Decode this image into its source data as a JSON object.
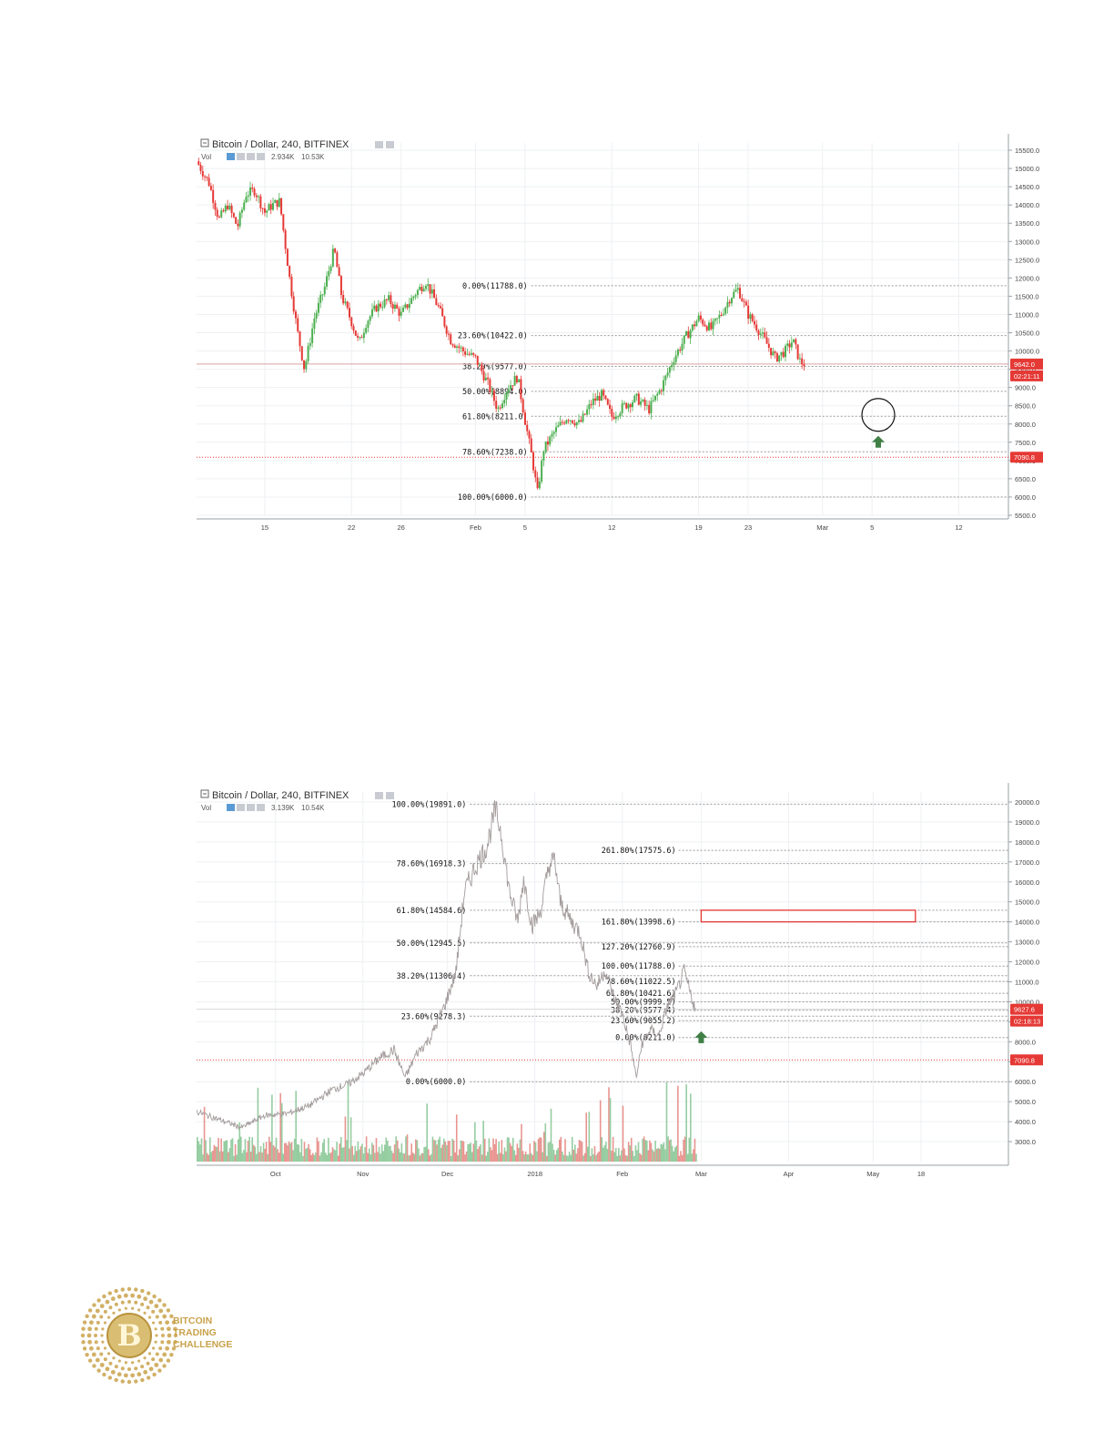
{
  "colors": {
    "up": "#4caf50",
    "down": "#e53935",
    "accent": "#e53935",
    "grid": "#eef0f3",
    "gold": "#c9a24b",
    "arrow": "#3f7f45"
  },
  "chart_data": [
    {
      "type": "candlestick",
      "title": "Bitcoin / Dollar, 240, BITFINEX",
      "vol_label": "Vol",
      "vol_values": [
        "2.934K",
        "10.53K"
      ],
      "y_ticks": [
        "15500.0",
        "15000.0",
        "14500.0",
        "14000.0",
        "13500.0",
        "13000.0",
        "12500.0",
        "12000.0",
        "11500.0",
        "11000.0",
        "10500.0",
        "10000.0",
        "9500.0",
        "9000.0",
        "8500.0",
        "8000.0",
        "7500.0",
        "7000.0",
        "6500.0",
        "6000.0",
        "5500.0"
      ],
      "ylim": [
        5500,
        15700
      ],
      "x_ticks": [
        "15",
        "22",
        "26",
        "Feb",
        "5",
        "12",
        "19",
        "23",
        "Mar",
        "5",
        "12"
      ],
      "x_tick_days": [
        15,
        22,
        26,
        32,
        36,
        43,
        50,
        54,
        60,
        64,
        71
      ],
      "xlim": [
        9.5,
        75
      ],
      "price_path": [
        {
          "d": 9.5,
          "p": 15200
        },
        {
          "d": 10.5,
          "p": 14600
        },
        {
          "d": 11.3,
          "p": 13600
        },
        {
          "d": 12,
          "p": 14000
        },
        {
          "d": 12.8,
          "p": 13400
        },
        {
          "d": 13.5,
          "p": 14300
        },
        {
          "d": 14.2,
          "p": 14400
        },
        {
          "d": 15,
          "p": 13800
        },
        {
          "d": 15.6,
          "p": 14000
        },
        {
          "d": 16.2,
          "p": 14100
        },
        {
          "d": 17,
          "p": 12000
        },
        {
          "d": 17.6,
          "p": 10600
        },
        {
          "d": 18.2,
          "p": 9500
        },
        {
          "d": 19,
          "p": 10900
        },
        {
          "d": 19.8,
          "p": 11700
        },
        {
          "d": 20.6,
          "p": 12800
        },
        {
          "d": 21.2,
          "p": 11500
        },
        {
          "d": 22,
          "p": 10800
        },
        {
          "d": 22.6,
          "p": 10200
        },
        {
          "d": 23.2,
          "p": 10800
        },
        {
          "d": 24,
          "p": 11200
        },
        {
          "d": 25,
          "p": 11400
        },
        {
          "d": 26,
          "p": 11000
        },
        {
          "d": 27.2,
          "p": 11600
        },
        {
          "d": 28,
          "p": 11900
        },
        {
          "d": 29,
          "p": 11200
        },
        {
          "d": 30,
          "p": 10300
        },
        {
          "d": 31,
          "p": 10000
        },
        {
          "d": 32,
          "p": 9800
        },
        {
          "d": 33,
          "p": 9100
        },
        {
          "d": 33.8,
          "p": 8400
        },
        {
          "d": 34.6,
          "p": 9000
        },
        {
          "d": 35.4,
          "p": 9300
        },
        {
          "d": 36,
          "p": 8100
        },
        {
          "d": 36.6,
          "p": 7000
        },
        {
          "d": 37,
          "p": 6100
        },
        {
          "d": 37.5,
          "p": 7300
        },
        {
          "d": 38.4,
          "p": 7800
        },
        {
          "d": 39.4,
          "p": 8200
        },
        {
          "d": 40.4,
          "p": 8000
        },
        {
          "d": 41.4,
          "p": 8600
        },
        {
          "d": 42.2,
          "p": 8800
        },
        {
          "d": 43,
          "p": 8200
        },
        {
          "d": 44,
          "p": 8500
        },
        {
          "d": 45,
          "p": 8700
        },
        {
          "d": 46,
          "p": 8400
        },
        {
          "d": 47,
          "p": 9000
        },
        {
          "d": 48,
          "p": 9800
        },
        {
          "d": 49,
          "p": 10400
        },
        {
          "d": 50,
          "p": 10900
        },
        {
          "d": 51,
          "p": 10600
        },
        {
          "d": 51.8,
          "p": 11000
        },
        {
          "d": 52.6,
          "p": 11500
        },
        {
          "d": 53.2,
          "p": 11700
        },
        {
          "d": 54,
          "p": 11000
        },
        {
          "d": 54.8,
          "p": 10600
        },
        {
          "d": 55.5,
          "p": 10200
        },
        {
          "d": 56.2,
          "p": 9800
        },
        {
          "d": 57,
          "p": 10000
        },
        {
          "d": 57.6,
          "p": 10300
        },
        {
          "d": 58.2,
          "p": 9700
        },
        {
          "d": 58.6,
          "p": 9642
        }
      ],
      "fib_levels": [
        {
          "label": "0.00%(11788.0)",
          "value": 11788
        },
        {
          "label": "23.60%(10422.0)",
          "value": 10422
        },
        {
          "label": "38.20%(9577.0)",
          "value": 9577
        },
        {
          "label": "50.00%(8894.0)",
          "value": 8894
        },
        {
          "label": "61.80%(8211.0)",
          "value": 8211
        },
        {
          "label": "78.60%(7238.0)",
          "value": 7238
        },
        {
          "label": "100.00%(6000.0)",
          "value": 6000
        }
      ],
      "current_price": {
        "label": "9642.0",
        "value": 9642,
        "countdown": "02:21:11"
      },
      "support_line": {
        "label": "7090.8",
        "value": 7090.8
      },
      "annotation_circle": {
        "day": 64.5,
        "value": 8250
      },
      "annotation_arrow": {
        "day": 64.5,
        "value": 7500
      }
    },
    {
      "type": "line",
      "title": "Bitcoin / Dollar, 240, BITFINEX",
      "vol_label": "Vol",
      "vol_values": [
        "3.139K",
        "10.54K"
      ],
      "y_ticks": [
        "20000.0",
        "19000.0",
        "18000.0",
        "17000.0",
        "16000.0",
        "15000.0",
        "14000.0",
        "13000.0",
        "12000.0",
        "11000.0",
        "10000.0",
        "9000.0",
        "8000.0",
        "7000.0",
        "6000.0",
        "5000.0",
        "4000.0",
        "3000.0"
      ],
      "ylim": [
        2000,
        20500
      ],
      "x_ticks": [
        "Oct",
        "Nov",
        "Dec",
        "2018",
        "Feb",
        "Mar",
        "Apr",
        "May",
        "18"
      ],
      "x_tick_days": [
        274,
        305,
        335,
        366,
        397,
        425,
        456,
        486,
        503
      ],
      "xlim": [
        246,
        534
      ],
      "price_path": [
        {
          "d": 246,
          "p": 4500
        },
        {
          "d": 254,
          "p": 4100
        },
        {
          "d": 262,
          "p": 3700
        },
        {
          "d": 270,
          "p": 4300
        },
        {
          "d": 278,
          "p": 4400
        },
        {
          "d": 286,
          "p": 4800
        },
        {
          "d": 294,
          "p": 5600
        },
        {
          "d": 300,
          "p": 5900
        },
        {
          "d": 305,
          "p": 6400
        },
        {
          "d": 311,
          "p": 7200
        },
        {
          "d": 316,
          "p": 7600
        },
        {
          "d": 320,
          "p": 6200
        },
        {
          "d": 324,
          "p": 7400
        },
        {
          "d": 329,
          "p": 8200
        },
        {
          "d": 334,
          "p": 9800
        },
        {
          "d": 338,
          "p": 11500
        },
        {
          "d": 341,
          "p": 15500
        },
        {
          "d": 345,
          "p": 16800
        },
        {
          "d": 349,
          "p": 17800
        },
        {
          "d": 352,
          "p": 19600
        },
        {
          "d": 354,
          "p": 18500
        },
        {
          "d": 357,
          "p": 15500
        },
        {
          "d": 360,
          "p": 14000
        },
        {
          "d": 362,
          "p": 16200
        },
        {
          "d": 365,
          "p": 13800
        },
        {
          "d": 368,
          "p": 14500
        },
        {
          "d": 371,
          "p": 16800
        },
        {
          "d": 373,
          "p": 17100
        },
        {
          "d": 375,
          "p": 15000
        },
        {
          "d": 379,
          "p": 14000
        },
        {
          "d": 382,
          "p": 13500
        },
        {
          "d": 385,
          "p": 11500
        },
        {
          "d": 388,
          "p": 10800
        },
        {
          "d": 391,
          "p": 11600
        },
        {
          "d": 394,
          "p": 10200
        },
        {
          "d": 397,
          "p": 9400
        },
        {
          "d": 400,
          "p": 7800
        },
        {
          "d": 402,
          "p": 6200
        },
        {
          "d": 404,
          "p": 7900
        },
        {
          "d": 407,
          "p": 8600
        },
        {
          "d": 410,
          "p": 8300
        },
        {
          "d": 413,
          "p": 9800
        },
        {
          "d": 416,
          "p": 10400
        },
        {
          "d": 419,
          "p": 11500
        },
        {
          "d": 421,
          "p": 10500
        },
        {
          "d": 423,
          "p": 9627
        }
      ],
      "volume_bars": "synthetic-decorative",
      "fib_left": [
        {
          "label": "100.00%(19891.0)",
          "value": 19891
        },
        {
          "label": "78.60%(16918.3)",
          "value": 16918.3
        },
        {
          "label": "61.80%(14584.6)",
          "value": 14584.6
        },
        {
          "label": "50.00%(12945.5)",
          "value": 12945.5
        },
        {
          "label": "38.20%(11306.4)",
          "value": 11306.4
        },
        {
          "label": "23.60%(9278.3)",
          "value": 9278.3
        },
        {
          "label": "0.00%(6000.0)",
          "value": 6000
        }
      ],
      "fib_right": [
        {
          "label": "261.80%(17575.6)",
          "value": 17575.6
        },
        {
          "label": "161.80%(13998.6)",
          "value": 13998.6
        },
        {
          "label": "127.20%(12760.9)",
          "value": 12760.9
        },
        {
          "label": "100.00%(11788.0)",
          "value": 11788
        },
        {
          "label": "78.60%(11022.5)",
          "value": 11022.5
        },
        {
          "label": "61.80%(10421.6)",
          "value": 10421.6
        },
        {
          "label": "50.00%(9999.5)",
          "value": 9999.5
        },
        {
          "label": "38.20%(9577.4)",
          "value": 9577.4
        },
        {
          "label": "23.60%(9055.2)",
          "value": 9055.2
        },
        {
          "label": "0.00%(8211.0)",
          "value": 8211
        }
      ],
      "current_price": {
        "label": "9627.6",
        "value": 9627.6,
        "countdown": "02:18:13"
      },
      "support_line": {
        "label": "7090.8",
        "value": 7090.8
      },
      "target_box": {
        "day_start": 425,
        "day_end": 501,
        "value_low": 14000,
        "value_high": 14584
      },
      "annotation_arrow": {
        "day": 425,
        "value": 8200
      }
    }
  ],
  "logo": {
    "line1": "BITCOIN",
    "line2": "TRADING",
    "line3": "CHALLENGE"
  }
}
